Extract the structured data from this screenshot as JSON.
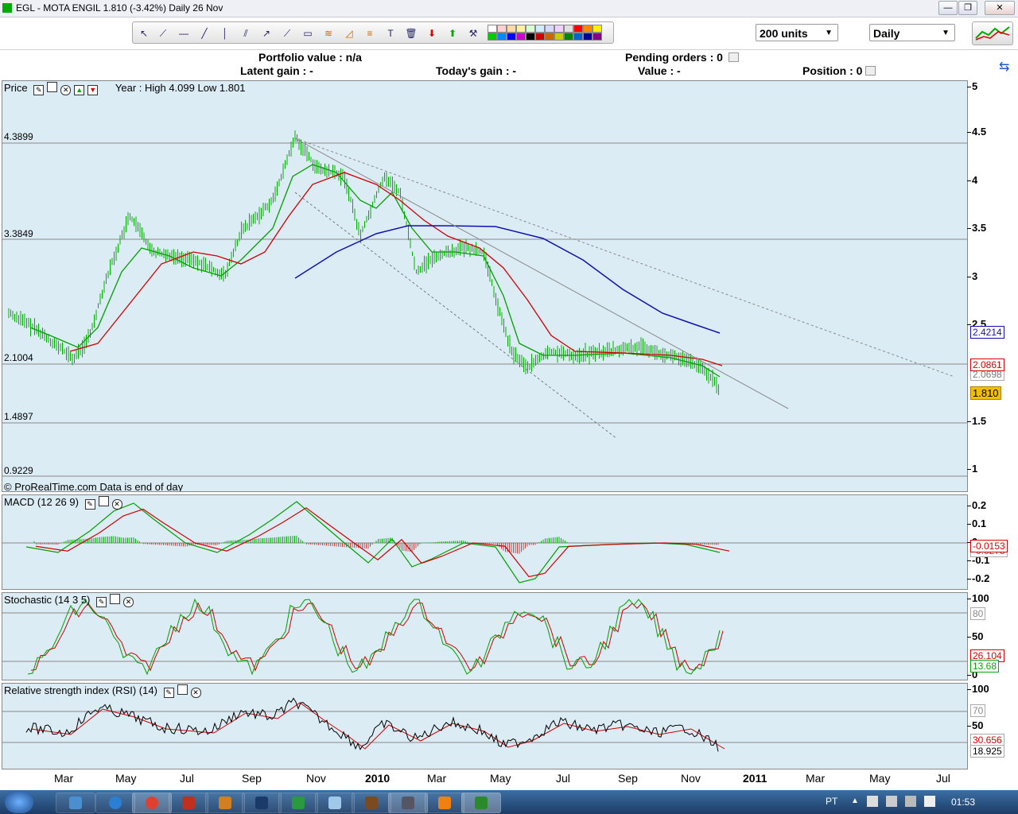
{
  "window": {
    "title": "EGL - MOTA ENGIL    1.810 (-3.42%)    Daily  26 Nov",
    "buttons": [
      "—",
      "❐",
      "✕"
    ]
  },
  "toolbar": {
    "units": "200 units",
    "period": "Daily",
    "tools": [
      "pointer-icon",
      "ruler-icon",
      "hline-icon",
      "line-icon",
      "vline-icon",
      "channel-icon",
      "ray-icon",
      "trend-icon",
      "rect-icon",
      "fibo-fan-icon",
      "fibo-arc-icon",
      "fibo-icon",
      "text-icon",
      "trash-icon",
      "down-arrow-icon",
      "up-arrow-icon",
      "tools-icon"
    ],
    "palette": [
      "#ffffff",
      "#ffd0d0",
      "#ffd8a8",
      "#fff0a0",
      "#d8ffd0",
      "#d0ecff",
      "#d8d8ff",
      "#f0d0ff",
      "#e0e0e0",
      "#ff0000",
      "#ff8800",
      "#ffee00",
      "#00cc00",
      "#0088ff",
      "#0000ff",
      "#cc00cc",
      "#000000",
      "#cc0000",
      "#cc6600",
      "#cccc00",
      "#008800",
      "#0066cc",
      "#000099",
      "#880088"
    ]
  },
  "portfolio": {
    "portfolio_value": "Portfolio value : n/a",
    "pending_orders": "Pending orders : 0",
    "latent_gain": "Latent gain : -",
    "todays_gain": "Today's gain : -",
    "value": "Value : -",
    "position": "Position : 0"
  },
  "price_panel": {
    "title": "Price",
    "year_range": "Year : High 4.099 Low 1.801",
    "copyright": "© ProRealTime.com Data is end of day",
    "levels": [
      "4.3899",
      "3.3849",
      "2.1004",
      "1.4897",
      "0.9229"
    ],
    "yticks": [
      "5",
      "4.5",
      "4",
      "3.5",
      "3",
      "2.5",
      "1.5",
      "1"
    ],
    "badges": {
      "ma_long": "2.4214",
      "ma_mid": "2.0861",
      "ma_short": "2.0698",
      "last": "1.810"
    }
  },
  "macd_panel": {
    "title": "MACD (12 26 9)",
    "yticks": [
      "0.2",
      "0.1",
      "0",
      "-0.1",
      "-0.2"
    ],
    "badges": {
      "value": "-0.0153",
      "signal": "-0.0275"
    }
  },
  "stoch_panel": {
    "title": "Stochastic (14 3 5)",
    "yticks": [
      "100",
      "50",
      "0"
    ],
    "badges": {
      "level": "80",
      "red": "26.104",
      "green": "13.68"
    }
  },
  "rsi_panel": {
    "title": "Relative strength index (RSI) (14)",
    "yticks": [
      "100",
      "50"
    ],
    "badges": {
      "level": "70",
      "ma": "30.656",
      "value": "18.925"
    }
  },
  "xaxis": [
    "Mar",
    "May",
    "Jul",
    "Sep",
    "Nov",
    "2010",
    "Mar",
    "May",
    "Jul",
    "Sep",
    "Nov",
    "2011",
    "Mar",
    "May",
    "Jul"
  ],
  "taskbar": {
    "lang": "PT",
    "clock": "01:53"
  },
  "colors": {
    "panel_bg": "#dcecf5",
    "ma_short": "#00a000",
    "ma_mid": "#d00000",
    "ma_long": "#1010b0",
    "candles": "#00b000"
  }
}
